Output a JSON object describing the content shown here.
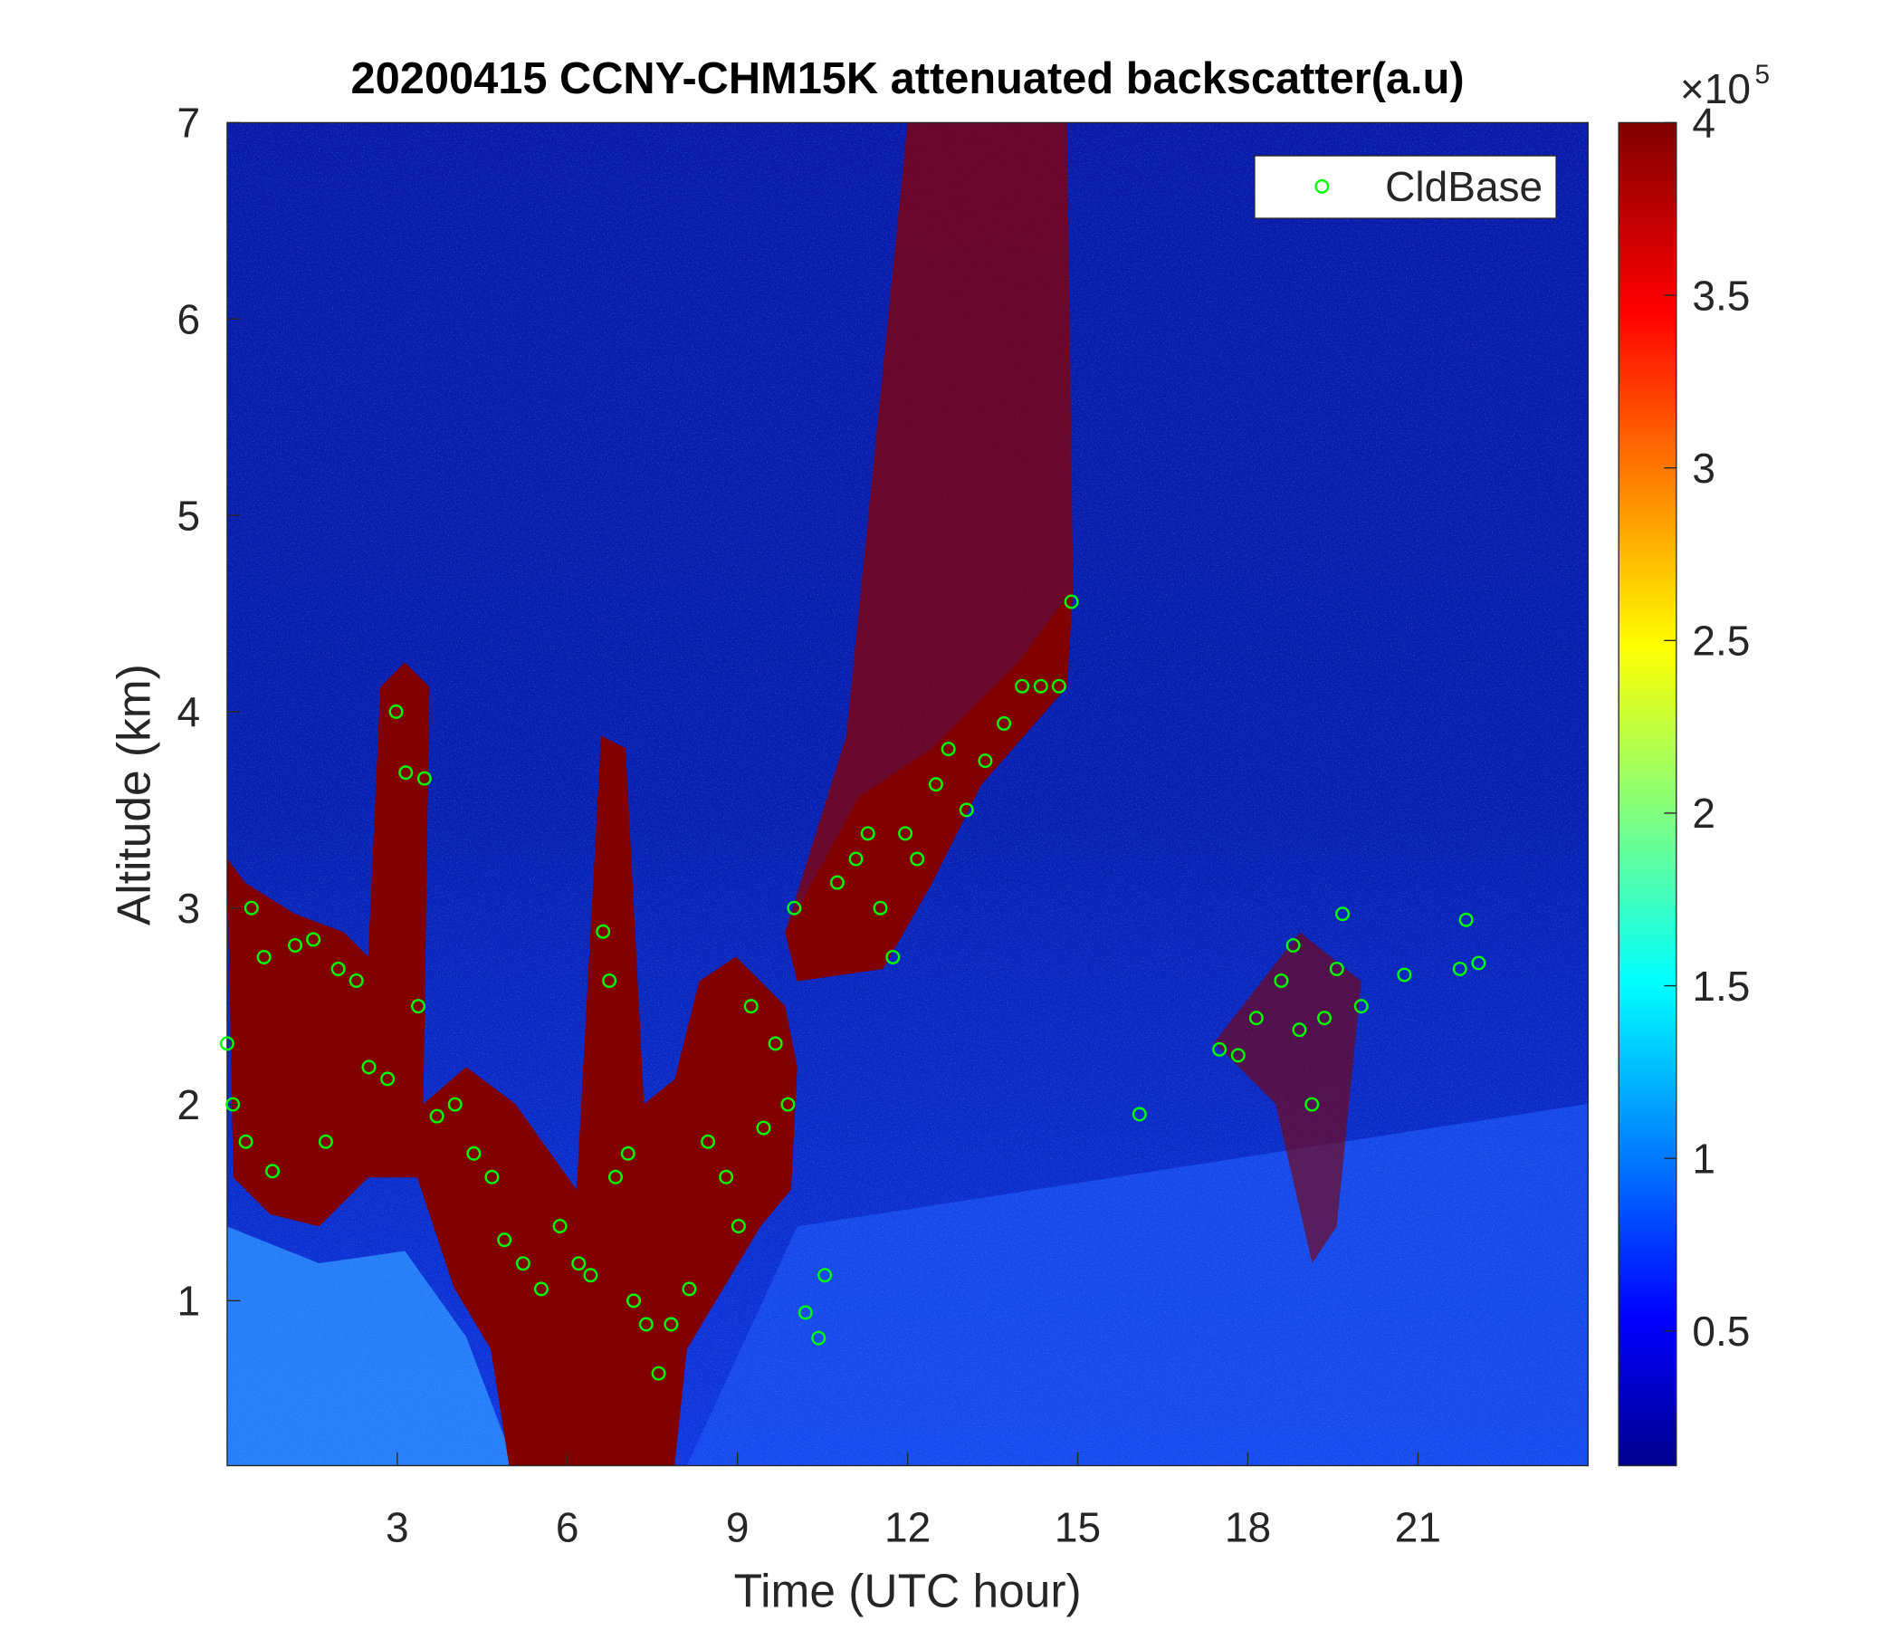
{
  "chart_data": {
    "type": "scatter",
    "title": "20200415 CCNY-CHM15K attenuated backscatter(a.u)",
    "x_label": "Time (UTC hour)",
    "y_label": "Altitude (km)",
    "xlim": [
      0,
      24
    ],
    "ylim": [
      0.16,
      7
    ],
    "xticks": [
      3,
      6,
      9,
      12,
      15,
      18,
      21
    ],
    "yticks": [
      1,
      2,
      3,
      4,
      5,
      6,
      7
    ],
    "colorbar": {
      "lim": [
        0.11,
        4
      ],
      "ticks": [
        0.5,
        1,
        1.5,
        2,
        2.5,
        3,
        3.5,
        4
      ],
      "multiplier": "×10",
      "exponent": "5"
    },
    "legend": "top-right",
    "series": [
      {
        "name": "CldBase",
        "color": "#00ff00",
        "x": [
          0,
          0.1,
          0.33,
          0.43,
          0.65,
          0.8,
          1.2,
          1.52,
          1.74,
          1.96,
          2.28,
          2.5,
          2.83,
          2.98,
          3.15,
          3.48,
          3.37,
          3.7,
          4.02,
          4.35,
          4.67,
          4.89,
          5.22,
          5.54,
          5.87,
          6.2,
          6.41,
          6.63,
          6.74,
          6.85,
          7.07,
          7.17,
          7.39,
          7.61,
          7.83,
          8.15,
          8.48,
          8.8,
          9.02,
          9.24,
          9.46,
          9.67,
          9.89,
          10.0,
          10.2,
          10.43,
          10.54,
          10.76,
          11.09,
          11.3,
          11.52,
          11.74,
          11.96,
          12.17,
          12.5,
          12.72,
          13.04,
          13.37,
          13.7,
          14.02,
          14.35,
          14.67,
          14.89,
          16.09,
          17.5,
          17.83,
          18.15,
          18.59,
          18.8,
          18.91,
          19.13,
          19.35,
          19.57,
          19.67,
          20.0,
          20.76,
          21.74,
          21.85,
          22.07
        ],
        "values": [
          2.31,
          2.0,
          1.81,
          3.0,
          2.75,
          1.66,
          2.81,
          2.84,
          1.81,
          2.69,
          2.63,
          2.19,
          2.13,
          4.0,
          3.69,
          3.66,
          2.5,
          1.94,
          2.0,
          1.75,
          1.63,
          1.31,
          1.19,
          1.06,
          1.38,
          1.19,
          1.13,
          2.88,
          2.63,
          1.63,
          1.75,
          1.0,
          0.88,
          0.63,
          0.88,
          1.06,
          1.81,
          1.63,
          1.38,
          2.5,
          1.88,
          2.31,
          2.0,
          3.0,
          0.94,
          0.81,
          1.13,
          3.13,
          3.25,
          3.38,
          3.0,
          2.75,
          3.38,
          3.25,
          3.63,
          3.81,
          3.5,
          3.75,
          3.94,
          4.13,
          4.13,
          4.13,
          4.56,
          1.95,
          2.28,
          2.25,
          2.44,
          2.63,
          2.81,
          2.38,
          2.0,
          2.44,
          2.69,
          2.97,
          2.5,
          2.66,
          2.69,
          2.94,
          2.72
        ]
      }
    ]
  }
}
